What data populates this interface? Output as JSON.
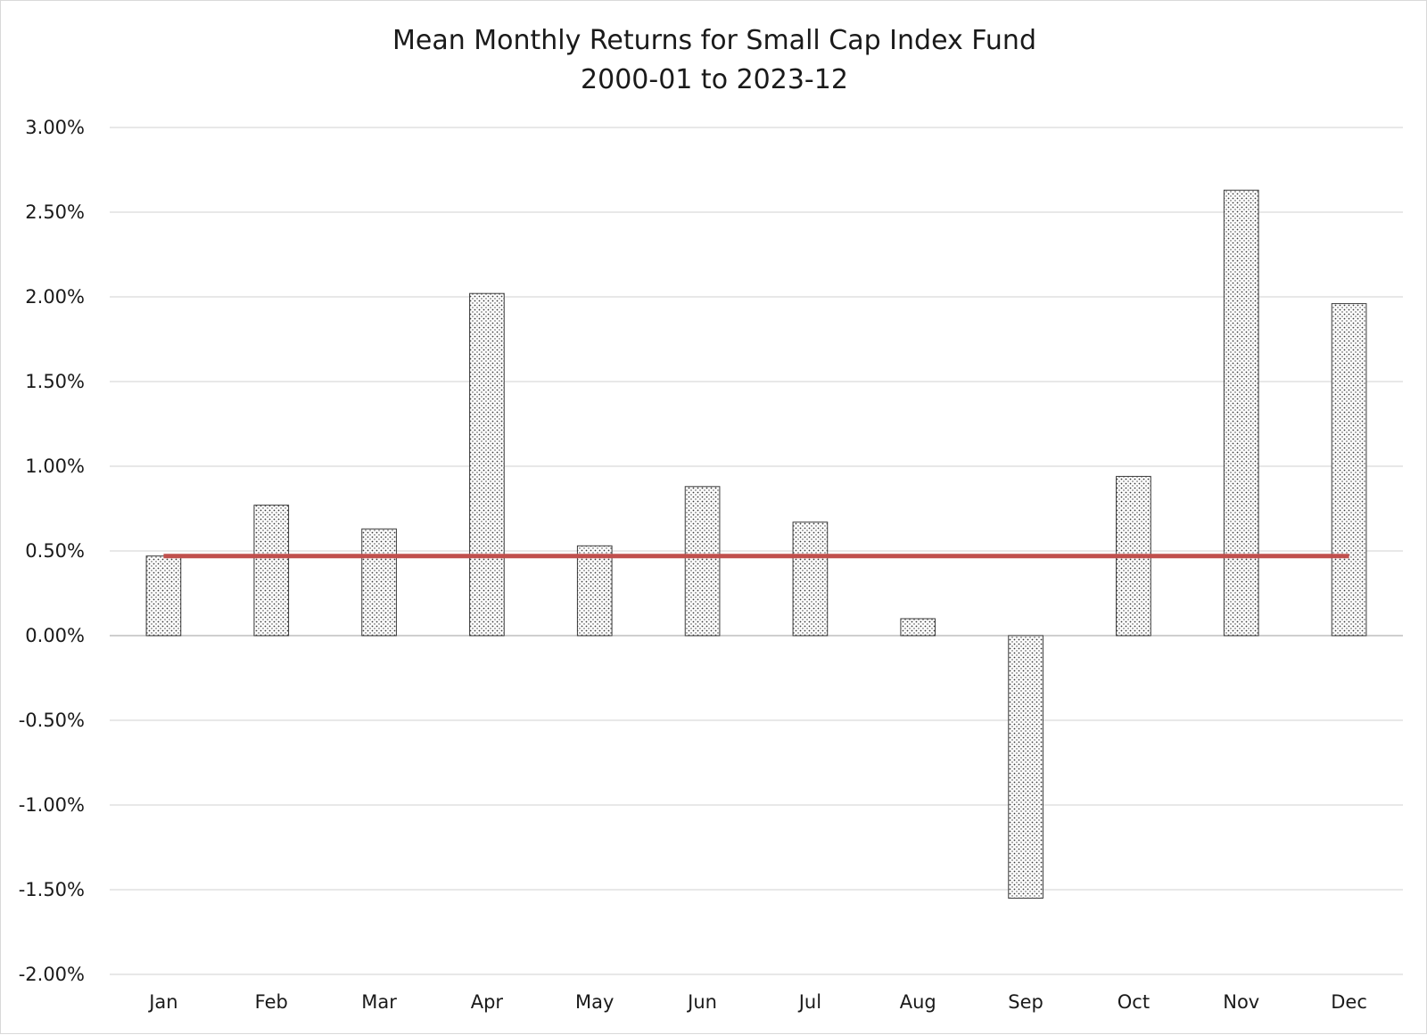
{
  "chart_data": {
    "type": "bar",
    "title": "Mean Monthly Returns for Small Cap Index Fund",
    "subtitle": "2000-01 to 2023-12",
    "xlabel": "",
    "ylabel": "",
    "categories": [
      "Jan",
      "Feb",
      "Mar",
      "Apr",
      "May",
      "Jun",
      "Jul",
      "Aug",
      "Sep",
      "Oct",
      "Nov",
      "Dec"
    ],
    "values": [
      0.47,
      0.77,
      0.63,
      2.02,
      0.53,
      0.88,
      0.67,
      0.1,
      -1.55,
      0.94,
      2.63,
      1.96
    ],
    "reference_line": {
      "type": "line",
      "value": 0.47,
      "color": "#c0504d"
    },
    "ylim": [
      -2.0,
      3.0
    ],
    "yticks": [
      -2.0,
      -1.5,
      -1.0,
      -0.5,
      0.0,
      0.5,
      1.0,
      1.5,
      2.0,
      2.5,
      3.0
    ],
    "ytick_labels": [
      "-2.00%",
      "-1.50%",
      "-1.00%",
      "-0.50%",
      "0.00%",
      "0.50%",
      "1.00%",
      "1.50%",
      "2.00%",
      "2.50%",
      "3.00%"
    ],
    "grid": true,
    "legend": "none",
    "bar_fill": "dotted-pattern",
    "colors": {
      "bar_dots": "#3a3a3a",
      "bar_background": "#ffffff",
      "grid": "#d9d9d9",
      "average_line": "#c0504d"
    }
  }
}
